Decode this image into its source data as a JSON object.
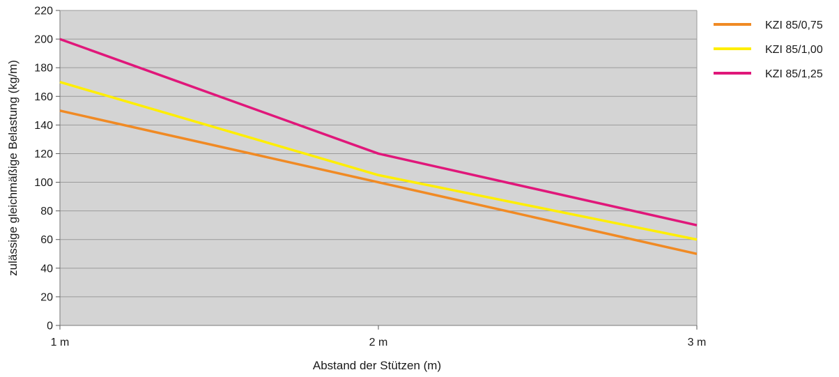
{
  "chart_data": {
    "type": "line",
    "x_categories": [
      "1 m",
      "2 m",
      "3 m"
    ],
    "xlabel": "Abstand der Stützen  (m)",
    "ylabel": "zulässige gleichmäßige Belastung (kg/m)",
    "ylim": [
      0,
      220
    ],
    "yticks": [
      0,
      20,
      40,
      60,
      80,
      100,
      120,
      140,
      160,
      180,
      200,
      220
    ],
    "grid": true,
    "legend_position": "right",
    "plot_background": "#d4d4d4",
    "gridline_color": "#9a9a9a",
    "series": [
      {
        "name": "KZI 85/0,75",
        "color": "#f08a24",
        "values": [
          150,
          100,
          50
        ]
      },
      {
        "name": "KZI 85/1,00",
        "color": "#ffee00",
        "values": [
          170,
          105,
          60
        ]
      },
      {
        "name": "KZI 85/1,25",
        "color": "#e0177a",
        "values": [
          200,
          120,
          70
        ]
      }
    ]
  }
}
